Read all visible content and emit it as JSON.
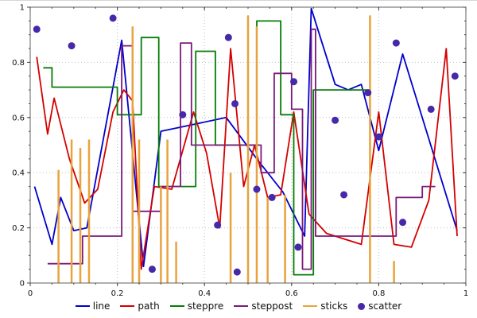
{
  "chart_data": {
    "type": "line",
    "title": "",
    "xlabel": "",
    "ylabel": "",
    "x_axis": {
      "min": 0,
      "max": 1,
      "major_ticks": [
        0,
        0.2,
        0.4,
        0.6,
        0.8,
        1
      ],
      "tick_labels": [
        "0",
        "0.2",
        "0.4",
        "0.6",
        "0.8",
        "1"
      ],
      "minor_step": 0.05
    },
    "y_axis": {
      "min": 0,
      "max": 1,
      "major_ticks": [
        0,
        0.2,
        0.4,
        0.6,
        0.8,
        1
      ],
      "tick_labels": [
        "0",
        "0.2",
        "0.4",
        "0.6",
        "0.8",
        "1"
      ],
      "minor_step": 0.05
    },
    "grid": {
      "on": true,
      "style": "dotted",
      "color": "#bdbdbd"
    },
    "border_color": "#606060",
    "legend_position": "bottom-center",
    "series": [
      {
        "name": "line",
        "type": "line",
        "color": "#0000cc",
        "points": [
          [
            0.01,
            0.35
          ],
          [
            0.05,
            0.14
          ],
          [
            0.07,
            0.31
          ],
          [
            0.1,
            0.19
          ],
          [
            0.13,
            0.2
          ],
          [
            0.21,
            0.88
          ],
          [
            0.26,
            0.06
          ],
          [
            0.3,
            0.55
          ],
          [
            0.36,
            0.57
          ],
          [
            0.45,
            0.6
          ],
          [
            0.52,
            0.45
          ],
          [
            0.58,
            0.33
          ],
          [
            0.63,
            0.17
          ],
          [
            0.645,
            0.995
          ],
          [
            0.7,
            0.72
          ],
          [
            0.73,
            0.7
          ],
          [
            0.76,
            0.72
          ],
          [
            0.8,
            0.48
          ],
          [
            0.855,
            0.83
          ],
          [
            0.98,
            0.19
          ]
        ]
      },
      {
        "name": "path",
        "type": "path",
        "color": "#d40000",
        "points": [
          [
            0.015,
            0.82
          ],
          [
            0.04,
            0.54
          ],
          [
            0.055,
            0.67
          ],
          [
            0.09,
            0.45
          ],
          [
            0.125,
            0.29
          ],
          [
            0.155,
            0.34
          ],
          [
            0.19,
            0.62
          ],
          [
            0.215,
            0.7
          ],
          [
            0.235,
            0.66
          ],
          [
            0.255,
            0.05
          ],
          [
            0.285,
            0.35
          ],
          [
            0.325,
            0.34
          ],
          [
            0.375,
            0.62
          ],
          [
            0.405,
            0.47
          ],
          [
            0.435,
            0.2
          ],
          [
            0.46,
            0.85
          ],
          [
            0.49,
            0.35
          ],
          [
            0.515,
            0.5
          ],
          [
            0.545,
            0.31
          ],
          [
            0.575,
            0.32
          ],
          [
            0.605,
            0.62
          ],
          [
            0.64,
            0.25
          ],
          [
            0.68,
            0.18
          ],
          [
            0.72,
            0.16
          ],
          [
            0.76,
            0.14
          ],
          [
            0.8,
            0.62
          ],
          [
            0.835,
            0.14
          ],
          [
            0.875,
            0.13
          ],
          [
            0.915,
            0.3
          ],
          [
            0.955,
            0.85
          ],
          [
            0.98,
            0.17
          ]
        ]
      },
      {
        "name": "steppre",
        "type": "step-pre",
        "color": "#067d06",
        "points": [
          [
            0.03,
            0.78
          ],
          [
            0.05,
            0.78
          ],
          [
            0.2,
            0.71
          ],
          [
            0.255,
            0.61
          ],
          [
            0.295,
            0.89
          ],
          [
            0.335,
            0.35
          ],
          [
            0.38,
            0.35
          ],
          [
            0.425,
            0.84
          ],
          [
            0.52,
            0.5
          ],
          [
            0.575,
            0.95
          ],
          [
            0.605,
            0.61
          ],
          [
            0.65,
            0.03
          ],
          [
            0.78,
            0.7
          ]
        ]
      },
      {
        "name": "steppost",
        "type": "step-post",
        "color": "#7a1a7a",
        "points": [
          [
            0.04,
            0.07
          ],
          [
            0.12,
            0.17
          ],
          [
            0.21,
            0.86
          ],
          [
            0.235,
            0.26
          ],
          [
            0.3,
            0.35
          ],
          [
            0.345,
            0.87
          ],
          [
            0.37,
            0.5
          ],
          [
            0.53,
            0.4
          ],
          [
            0.56,
            0.76
          ],
          [
            0.6,
            0.63
          ],
          [
            0.625,
            0.05
          ],
          [
            0.645,
            0.92
          ],
          [
            0.655,
            0.17
          ],
          [
            0.84,
            0.31
          ],
          [
            0.9,
            0.35
          ],
          [
            0.93,
            0.35
          ]
        ]
      },
      {
        "name": "sticks",
        "type": "sticks",
        "color": "#e8a33c",
        "points": [
          [
            0.065,
            0.41
          ],
          [
            0.095,
            0.52
          ],
          [
            0.115,
            0.49
          ],
          [
            0.135,
            0.52
          ],
          [
            0.235,
            0.93
          ],
          [
            0.25,
            0.52
          ],
          [
            0.3,
            0.35
          ],
          [
            0.315,
            0.52
          ],
          [
            0.335,
            0.15
          ],
          [
            0.46,
            0.4
          ],
          [
            0.5,
            0.97
          ],
          [
            0.52,
            0.93
          ],
          [
            0.545,
            0.31
          ],
          [
            0.585,
            0.32
          ],
          [
            0.78,
            0.97
          ],
          [
            0.835,
            0.08
          ]
        ]
      },
      {
        "name": "scatter",
        "type": "scatter",
        "color": "#4629a8",
        "points": [
          [
            0.015,
            0.92
          ],
          [
            0.095,
            0.86
          ],
          [
            0.19,
            0.96
          ],
          [
            0.28,
            0.05
          ],
          [
            0.35,
            0.61
          ],
          [
            0.43,
            0.21
          ],
          [
            0.455,
            0.89
          ],
          [
            0.47,
            0.65
          ],
          [
            0.475,
            0.04
          ],
          [
            0.52,
            0.34
          ],
          [
            0.555,
            0.31
          ],
          [
            0.605,
            0.73
          ],
          [
            0.615,
            0.13
          ],
          [
            0.7,
            0.59
          ],
          [
            0.72,
            0.32
          ],
          [
            0.775,
            0.69
          ],
          [
            0.8,
            0.53
          ],
          [
            0.84,
            0.87
          ],
          [
            0.855,
            0.22
          ],
          [
            0.92,
            0.63
          ],
          [
            0.975,
            0.75
          ]
        ]
      }
    ]
  }
}
